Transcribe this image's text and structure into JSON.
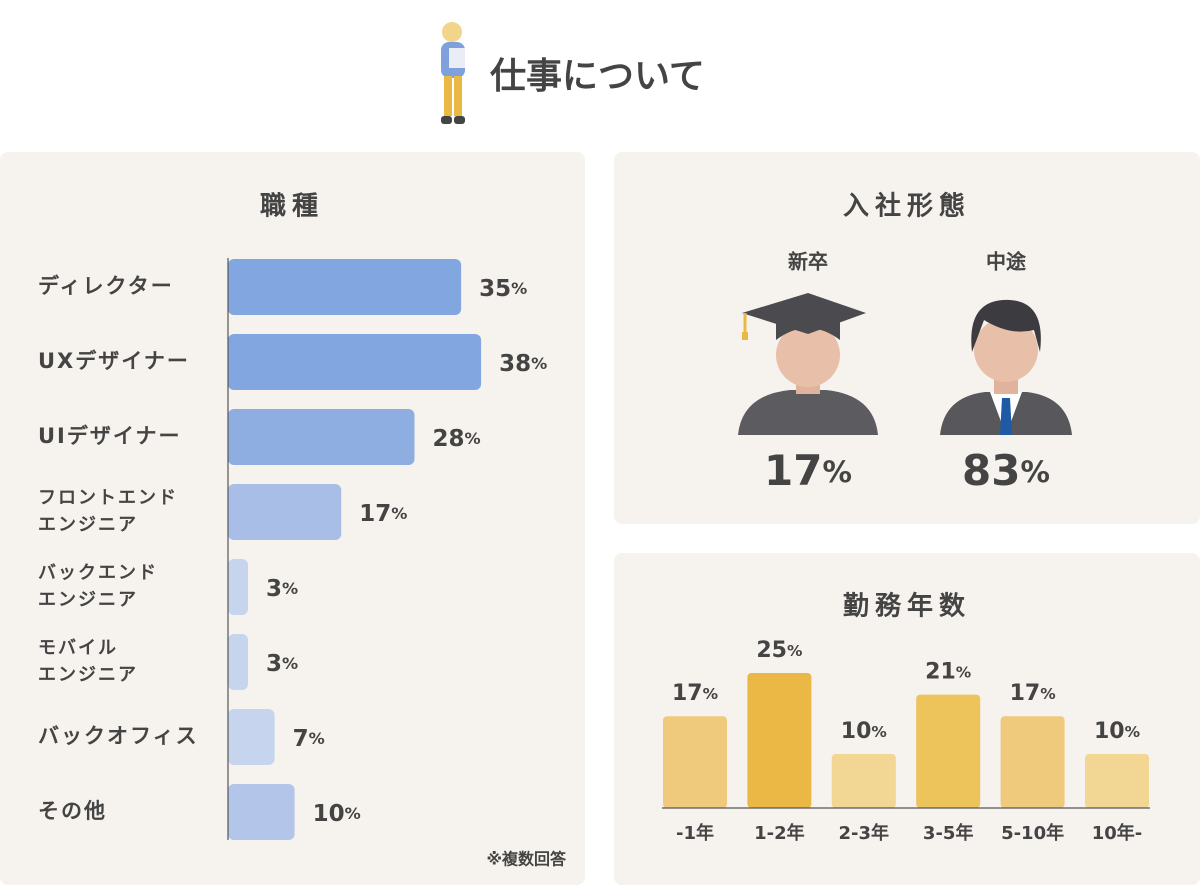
{
  "title": "仕事について",
  "chart_data": [
    {
      "type": "hbar",
      "title": "職種",
      "categories": [
        "ディレクター",
        "UXデザイナー",
        "UIデザイナー",
        "フロントエンド\nエンジニア",
        "バックエンド\nエンジニア",
        "モバイル\nエンジニア",
        "バックオフィス",
        "その他"
      ],
      "values": [
        35,
        38,
        28,
        17,
        3,
        3,
        7,
        10
      ],
      "value_labels": [
        "35%",
        "38%",
        "28%",
        "17%",
        "3%",
        "3%",
        "7%",
        "10%"
      ],
      "colors": [
        "#82a6df",
        "#82a6df",
        "#8eaee1",
        "#a8bee6",
        "#c6d4ee",
        "#c6d4ee",
        "#c6d4ee",
        "#b3c6e9"
      ],
      "label_color": "#7a9bd6",
      "note": "※複数回答"
    },
    {
      "type": "figures",
      "title": "入社形態",
      "categories": [
        "新卒",
        "中途"
      ],
      "values": [
        17,
        83
      ],
      "value_labels": [
        "17%",
        "83%"
      ],
      "colors": [
        "#e5826a",
        "#5bbfda"
      ]
    },
    {
      "type": "bar",
      "title": "勤務年数",
      "categories": [
        "-1年",
        "1-2年",
        "2-3年",
        "3-5年",
        "5-10年",
        "10年-"
      ],
      "values": [
        17,
        25,
        10,
        21,
        17,
        10
      ],
      "value_labels": [
        "17%",
        "25%",
        "10%",
        "21%",
        "17%",
        "10%"
      ],
      "colors": [
        "#efca7c",
        "#ebb845",
        "#f2d693",
        "#edc35c",
        "#efca7c",
        "#f2d693"
      ],
      "label_color": "#e9b944"
    }
  ]
}
